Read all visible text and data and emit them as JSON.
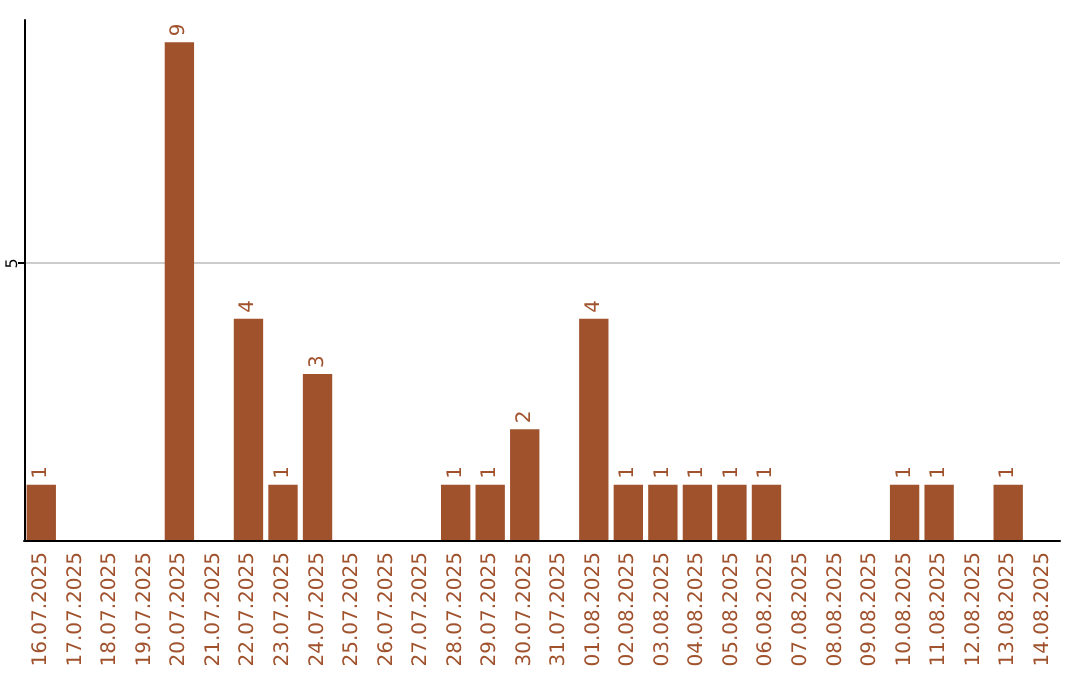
{
  "chart_data": {
    "type": "bar",
    "categories": [
      "16.07.2025",
      "17.07.2025",
      "18.07.2025",
      "19.07.2025",
      "20.07.2025",
      "21.07.2025",
      "22.07.2025",
      "23.07.2025",
      "24.07.2025",
      "25.07.2025",
      "26.07.2025",
      "27.07.2025",
      "28.07.2025",
      "29.07.2025",
      "30.07.2025",
      "31.07.2025",
      "01.08.2025",
      "02.08.2025",
      "03.08.2025",
      "04.08.2025",
      "05.08.2025",
      "06.08.2025",
      "07.08.2025",
      "08.08.2025",
      "09.08.2025",
      "10.08.2025",
      "11.08.2025",
      "12.08.2025",
      "13.08.2025",
      "14.08.2025"
    ],
    "values": [
      1,
      0,
      0,
      0,
      9,
      0,
      4,
      1,
      3,
      0,
      0,
      0,
      1,
      1,
      2,
      0,
      4,
      1,
      1,
      1,
      1,
      1,
      0,
      0,
      0,
      1,
      1,
      0,
      1,
      0
    ],
    "value_labels": [
      "1",
      null,
      null,
      null,
      "9",
      null,
      "4",
      "1",
      "3",
      null,
      null,
      null,
      "1",
      "1",
      "2",
      null,
      "4",
      "1",
      "1",
      "1",
      "1",
      "1",
      null,
      null,
      null,
      "1",
      "1",
      null,
      "1",
      null
    ],
    "color": "#a0522d",
    "ylim": [
      0,
      9.4
    ],
    "yticks": [
      5
    ],
    "grid": "y"
  }
}
